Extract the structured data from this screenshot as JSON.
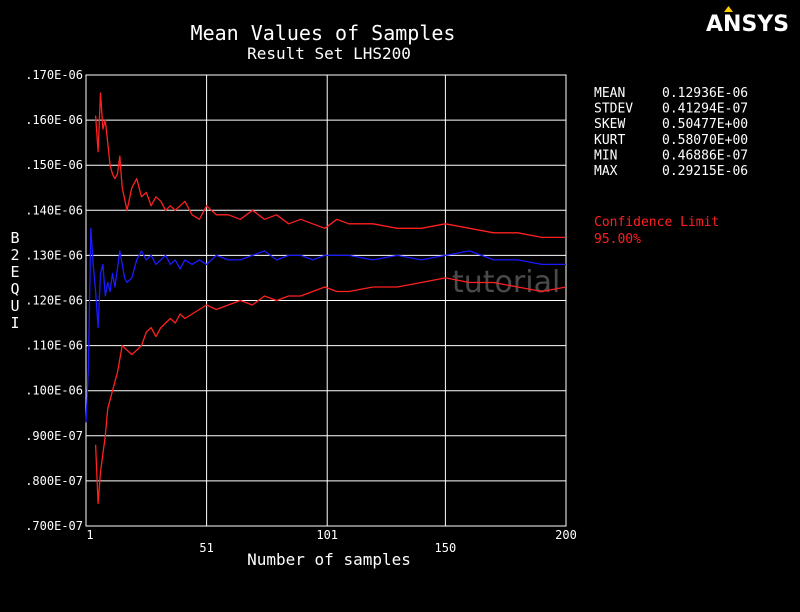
{
  "app": {
    "logo_text": "ANSYS"
  },
  "watermark": "tutorial",
  "stats": [
    {
      "label": "MEAN",
      "value": "0.12936E-06"
    },
    {
      "label": "STDEV",
      "value": "0.41294E-07"
    },
    {
      "label": "SKEW",
      "value": "0.50477E+00"
    },
    {
      "label": "KURT",
      "value": "0.58070E+00"
    },
    {
      "label": "MIN",
      "value": "0.46886E-07"
    },
    {
      "label": "MAX",
      "value": "0.29215E-06"
    }
  ],
  "confidence": {
    "label": "Confidence Limit",
    "value": "95.00%"
  },
  "colors": {
    "background": "#000000",
    "text": "#ffffff",
    "grid": "#ffffff",
    "mean_series": "#1a1aff",
    "confidence_series": "#ff2020",
    "confidence_text": "#ff2020",
    "logo_accent": "#ffcc00"
  },
  "chart_data": {
    "type": "line",
    "title": "Mean Values of Samples",
    "subtitle": "Result Set LHS200",
    "xlabel": "Number of samples",
    "ylabel": "B2EQUI",
    "xlim": [
      1,
      200
    ],
    "ylim": [
      7e-08,
      1.7e-07
    ],
    "grid": true,
    "x_ticks": [
      1,
      51,
      101,
      150,
      200
    ],
    "y_ticks": [
      {
        "value": 7e-08,
        "label": ".700E-07"
      },
      {
        "value": 8e-08,
        "label": ".800E-07"
      },
      {
        "value": 9e-08,
        "label": ".900E-07"
      },
      {
        "value": 1e-07,
        "label": ".100E-06"
      },
      {
        "value": 1.1e-07,
        "label": ".110E-06"
      },
      {
        "value": 1.2e-07,
        "label": ".120E-06"
      },
      {
        "value": 1.3e-07,
        "label": ".130E-06"
      },
      {
        "value": 1.4e-07,
        "label": ".140E-06"
      },
      {
        "value": 1.5e-07,
        "label": ".150E-06"
      },
      {
        "value": 1.6e-07,
        "label": ".160E-06"
      },
      {
        "value": 1.7e-07,
        "label": ".170E-06"
      }
    ],
    "series": [
      {
        "role": "mean",
        "x": [
          1,
          2,
          3,
          4,
          5,
          6,
          7,
          8,
          9,
          10,
          11,
          12,
          13,
          14,
          15,
          16,
          17,
          18,
          20,
          22,
          24,
          26,
          28,
          30,
          32,
          34,
          36,
          38,
          40,
          42,
          45,
          48,
          51,
          55,
          60,
          65,
          70,
          75,
          80,
          85,
          90,
          95,
          100,
          110,
          120,
          130,
          140,
          150,
          160,
          170,
          180,
          190,
          200
        ],
        "values": [
          9.3e-08,
          1.05e-07,
          1.36e-07,
          1.28e-07,
          1.22e-07,
          1.14e-07,
          1.26e-07,
          1.28e-07,
          1.21e-07,
          1.24e-07,
          1.22e-07,
          1.26e-07,
          1.23e-07,
          1.27e-07,
          1.31e-07,
          1.28e-07,
          1.25e-07,
          1.24e-07,
          1.25e-07,
          1.29e-07,
          1.31e-07,
          1.29e-07,
          1.3e-07,
          1.28e-07,
          1.29e-07,
          1.3e-07,
          1.28e-07,
          1.29e-07,
          1.27e-07,
          1.29e-07,
          1.28e-07,
          1.29e-07,
          1.28e-07,
          1.3e-07,
          1.29e-07,
          1.29e-07,
          1.3e-07,
          1.31e-07,
          1.29e-07,
          1.3e-07,
          1.3e-07,
          1.29e-07,
          1.3e-07,
          1.3e-07,
          1.29e-07,
          1.3e-07,
          1.29e-07,
          1.3e-07,
          1.31e-07,
          1.29e-07,
          1.29e-07,
          1.28e-07,
          1.28e-07
        ]
      },
      {
        "role": "upper-confidence",
        "x": [
          5,
          6,
          7,
          8,
          9,
          10,
          11,
          12,
          13,
          14,
          15,
          16,
          18,
          20,
          22,
          24,
          26,
          28,
          30,
          32,
          34,
          36,
          38,
          40,
          42,
          45,
          48,
          51,
          55,
          60,
          65,
          70,
          75,
          80,
          85,
          90,
          95,
          100,
          105,
          110,
          120,
          130,
          140,
          150,
          160,
          170,
          180,
          190,
          200
        ],
        "values": [
          1.61e-07,
          1.53e-07,
          1.66e-07,
          1.58e-07,
          1.6e-07,
          1.55e-07,
          1.5e-07,
          1.48e-07,
          1.47e-07,
          1.48e-07,
          1.52e-07,
          1.45e-07,
          1.4e-07,
          1.45e-07,
          1.47e-07,
          1.43e-07,
          1.44e-07,
          1.41e-07,
          1.43e-07,
          1.42e-07,
          1.4e-07,
          1.41e-07,
          1.4e-07,
          1.41e-07,
          1.42e-07,
          1.39e-07,
          1.38e-07,
          1.41e-07,
          1.39e-07,
          1.39e-07,
          1.38e-07,
          1.4e-07,
          1.38e-07,
          1.39e-07,
          1.37e-07,
          1.38e-07,
          1.37e-07,
          1.36e-07,
          1.38e-07,
          1.37e-07,
          1.37e-07,
          1.36e-07,
          1.36e-07,
          1.37e-07,
          1.36e-07,
          1.35e-07,
          1.35e-07,
          1.34e-07,
          1.34e-07
        ]
      },
      {
        "role": "lower-confidence",
        "x": [
          5,
          6,
          7,
          8,
          9,
          10,
          11,
          12,
          13,
          14,
          15,
          16,
          18,
          20,
          22,
          24,
          26,
          28,
          30,
          32,
          34,
          36,
          38,
          40,
          42,
          45,
          48,
          51,
          55,
          60,
          65,
          70,
          75,
          80,
          85,
          90,
          95,
          100,
          105,
          110,
          120,
          130,
          140,
          150,
          160,
          170,
          180,
          190,
          200
        ],
        "values": [
          8.8e-08,
          7.5e-08,
          8.2e-08,
          8.6e-08,
          9e-08,
          9.6e-08,
          9.8e-08,
          1e-07,
          1.02e-07,
          1.04e-07,
          1.07e-07,
          1.1e-07,
          1.09e-07,
          1.08e-07,
          1.09e-07,
          1.1e-07,
          1.13e-07,
          1.14e-07,
          1.12e-07,
          1.14e-07,
          1.15e-07,
          1.16e-07,
          1.15e-07,
          1.17e-07,
          1.16e-07,
          1.17e-07,
          1.18e-07,
          1.19e-07,
          1.18e-07,
          1.19e-07,
          1.2e-07,
          1.19e-07,
          1.21e-07,
          1.2e-07,
          1.21e-07,
          1.21e-07,
          1.22e-07,
          1.23e-07,
          1.22e-07,
          1.22e-07,
          1.23e-07,
          1.23e-07,
          1.24e-07,
          1.25e-07,
          1.24e-07,
          1.24e-07,
          1.23e-07,
          1.22e-07,
          1.23e-07
        ]
      }
    ]
  }
}
